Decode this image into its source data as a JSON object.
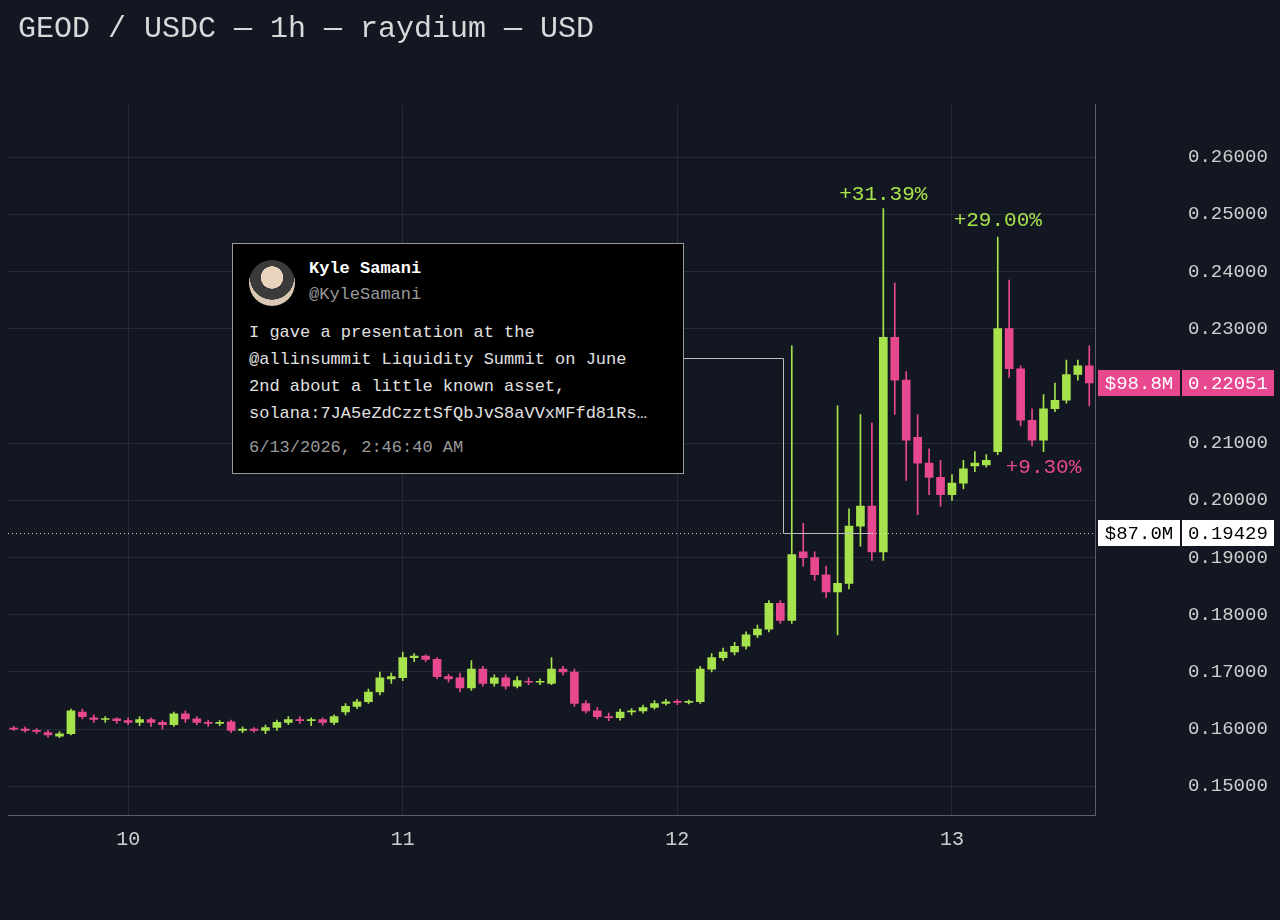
{
  "chart_data": {
    "type": "candlestick",
    "title": "GEOD / USDC — 1h — raydium — USD",
    "categories": [
      null,
      null,
      null,
      null,
      null,
      null,
      null,
      null,
      null,
      null,
      "10",
      null,
      null,
      null,
      null,
      null,
      null,
      null,
      null,
      null,
      null,
      null,
      null,
      null,
      null,
      null,
      null,
      null,
      null,
      null,
      null,
      null,
      null,
      null,
      "11",
      null,
      null,
      null,
      null,
      null,
      null,
      null,
      null,
      null,
      null,
      null,
      null,
      null,
      null,
      null,
      null,
      null,
      null,
      null,
      null,
      null,
      null,
      null,
      "12",
      null,
      null,
      null,
      null,
      null,
      null,
      null,
      null,
      null,
      null,
      null,
      null,
      null,
      null,
      null,
      null,
      null,
      null,
      null,
      null,
      null,
      null,
      null,
      "13",
      null,
      null,
      null,
      null,
      null,
      null,
      null,
      null,
      null,
      null,
      null,
      null
    ],
    "open": [
      0.1602,
      0.16,
      0.1598,
      0.1594,
      0.1588,
      0.1592,
      0.163,
      0.162,
      0.1617,
      0.1618,
      0.1615,
      0.1612,
      0.1617,
      0.1612,
      0.1608,
      0.1627,
      0.1618,
      0.1612,
      0.161,
      0.1613,
      0.1598,
      0.16,
      0.1598,
      0.1603,
      0.1612,
      0.1617,
      0.1615,
      0.1617,
      0.1612,
      0.163,
      0.164,
      0.1648,
      0.1665,
      0.1688,
      0.169,
      0.1725,
      0.1728,
      0.1722,
      0.1692,
      0.169,
      0.1672,
      0.1705,
      0.168,
      0.169,
      0.1675,
      0.1683,
      0.1682,
      0.168,
      0.1705,
      0.17,
      0.1645,
      0.1632,
      0.1622,
      0.162,
      0.163,
      0.1632,
      0.1638,
      0.1645,
      0.1648,
      0.1647,
      0.1648,
      0.1705,
      0.1725,
      0.1735,
      0.1745,
      0.1765,
      0.1775,
      0.182,
      0.179,
      0.191,
      0.19,
      0.187,
      0.184,
      0.1855,
      0.1955,
      0.199,
      0.191,
      0.2285,
      0.221,
      0.211,
      0.2065,
      0.204,
      0.201,
      0.203,
      0.206,
      0.2062,
      0.2085,
      0.23,
      0.223,
      0.214,
      0.2105,
      0.216,
      0.2175,
      0.222,
      0.2235
    ],
    "high": [
      0.1605,
      0.1604,
      0.1601,
      0.1598,
      0.1596,
      0.1635,
      0.1635,
      0.1625,
      0.1622,
      0.162,
      0.162,
      0.1622,
      0.162,
      0.1615,
      0.163,
      0.1632,
      0.1622,
      0.1616,
      0.1615,
      0.1616,
      0.1604,
      0.1603,
      0.1607,
      0.1616,
      0.1622,
      0.1622,
      0.162,
      0.162,
      0.1625,
      0.1645,
      0.1652,
      0.167,
      0.17,
      0.1698,
      0.1735,
      0.1732,
      0.173,
      0.1725,
      0.1696,
      0.1698,
      0.172,
      0.171,
      0.1695,
      0.1695,
      0.1692,
      0.169,
      0.1688,
      0.1725,
      0.171,
      0.1705,
      0.165,
      0.1638,
      0.1628,
      0.1635,
      0.1636,
      0.1642,
      0.165,
      0.1652,
      0.1652,
      0.1651,
      0.171,
      0.1732,
      0.1742,
      0.1752,
      0.177,
      0.1782,
      0.1825,
      0.1825,
      0.227,
      0.196,
      0.191,
      0.1885,
      0.2165,
      0.1985,
      0.215,
      0.2135,
      0.251,
      0.238,
      0.2225,
      0.215,
      0.209,
      0.207,
      0.2045,
      0.207,
      0.2085,
      0.208,
      0.246,
      0.2385,
      0.2235,
      0.216,
      0.2185,
      0.2205,
      0.2245,
      0.2245,
      0.227
    ],
    "low": [
      0.1598,
      0.1595,
      0.1592,
      0.1586,
      0.1585,
      0.159,
      0.1618,
      0.1612,
      0.1612,
      0.161,
      0.1608,
      0.1606,
      0.1605,
      0.16,
      0.1605,
      0.1612,
      0.1608,
      0.1605,
      0.1606,
      0.1594,
      0.1594,
      0.1595,
      0.1592,
      0.1598,
      0.1608,
      0.161,
      0.1606,
      0.1607,
      0.1608,
      0.1625,
      0.1636,
      0.1645,
      0.166,
      0.168,
      0.1685,
      0.1718,
      0.1718,
      0.1688,
      0.1682,
      0.1665,
      0.1668,
      0.1675,
      0.1675,
      0.167,
      0.1672,
      0.1678,
      0.1678,
      0.1678,
      0.1695,
      0.164,
      0.1628,
      0.1618,
      0.1615,
      0.1616,
      0.1625,
      0.1628,
      0.1635,
      0.1642,
      0.1643,
      0.1644,
      0.1645,
      0.17,
      0.172,
      0.173,
      0.174,
      0.176,
      0.177,
      0.1785,
      0.1785,
      0.1885,
      0.186,
      0.183,
      0.1765,
      0.1845,
      0.192,
      0.1895,
      0.1895,
      0.215,
      0.2035,
      0.1975,
      0.201,
      0.199,
      0.2,
      0.202,
      0.205,
      0.2058,
      0.208,
      0.2215,
      0.213,
      0.2095,
      0.2085,
      0.2155,
      0.217,
      0.221,
      0.2165
    ],
    "close": [
      0.16,
      0.1598,
      0.1596,
      0.159,
      0.1592,
      0.1632,
      0.1622,
      0.1617,
      0.1618,
      0.1615,
      0.1612,
      0.1617,
      0.1612,
      0.1608,
      0.1627,
      0.1618,
      0.1612,
      0.161,
      0.1612,
      0.1598,
      0.16,
      0.1598,
      0.1603,
      0.1612,
      0.1617,
      0.1615,
      0.1617,
      0.1612,
      0.1622,
      0.164,
      0.1648,
      0.1665,
      0.169,
      0.1692,
      0.1725,
      0.1728,
      0.1722,
      0.1692,
      0.1688,
      0.1672,
      0.1705,
      0.168,
      0.169,
      0.1675,
      0.1685,
      0.1682,
      0.1683,
      0.1705,
      0.17,
      0.1645,
      0.1632,
      0.1622,
      0.162,
      0.163,
      0.1632,
      0.1638,
      0.1645,
      0.1648,
      0.1647,
      0.1648,
      0.1705,
      0.1725,
      0.1735,
      0.1745,
      0.1765,
      0.1775,
      0.182,
      0.179,
      0.1905,
      0.19,
      0.187,
      0.184,
      0.1855,
      0.1955,
      0.199,
      0.191,
      0.2285,
      0.221,
      0.2105,
      0.2065,
      0.204,
      0.201,
      0.203,
      0.2055,
      0.2065,
      0.207,
      0.23,
      0.223,
      0.214,
      0.2105,
      0.216,
      0.2175,
      0.222,
      0.2235,
      0.2205
    ],
    "colors": [
      "#e8488f",
      "#e8488f",
      "#e8488f",
      "#e8488f",
      "#a6e24c",
      "#a6e24c",
      "#e8488f",
      "#e8488f",
      "#a6e24c",
      "#e8488f",
      "#e8488f",
      "#a6e24c",
      "#e8488f",
      "#e8488f",
      "#a6e24c",
      "#e8488f",
      "#e8488f",
      "#e8488f",
      "#a6e24c",
      "#e8488f",
      "#a6e24c",
      "#e8488f",
      "#a6e24c",
      "#a6e24c",
      "#a6e24c",
      "#e8488f",
      "#a6e24c",
      "#e8488f",
      "#a6e24c",
      "#a6e24c",
      "#a6e24c",
      "#a6e24c",
      "#a6e24c",
      "#a6e24c",
      "#a6e24c",
      "#a6e24c",
      "#e8488f",
      "#e8488f",
      "#e8488f",
      "#e8488f",
      "#a6e24c",
      "#e8488f",
      "#a6e24c",
      "#e8488f",
      "#a6e24c",
      "#e8488f",
      "#a6e24c",
      "#a6e24c",
      "#e8488f",
      "#e8488f",
      "#e8488f",
      "#e8488f",
      "#e8488f",
      "#a6e24c",
      "#a6e24c",
      "#a6e24c",
      "#a6e24c",
      "#a6e24c",
      "#e8488f",
      "#a6e24c",
      "#a6e24c",
      "#a6e24c",
      "#a6e24c",
      "#a6e24c",
      "#a6e24c",
      "#a6e24c",
      "#a6e24c",
      "#e8488f",
      "#a6e24c",
      "#e8488f",
      "#e8488f",
      "#e8488f",
      "#a6e24c",
      "#a6e24c",
      "#a6e24c",
      "#e8488f",
      "#a6e24c",
      "#e8488f",
      "#e8488f",
      "#e8488f",
      "#e8488f",
      "#e8488f",
      "#a6e24c",
      "#a6e24c",
      "#a6e24c",
      "#a6e24c",
      "#a6e24c",
      "#e8488f",
      "#e8488f",
      "#e8488f",
      "#a6e24c",
      "#a6e24c",
      "#a6e24c",
      "#a6e24c",
      "#e8488f"
    ],
    "ylim": [
      0.1449,
      0.2692
    ],
    "yticks": [
      {
        "value": 0.15,
        "label": "0.15000"
      },
      {
        "value": 0.16,
        "label": "0.16000"
      },
      {
        "value": 0.17,
        "label": "0.17000"
      },
      {
        "value": 0.18,
        "label": "0.18000"
      },
      {
        "value": 0.19,
        "label": "0.19000"
      },
      {
        "value": 0.2,
        "label": "0.20000"
      },
      {
        "value": 0.21,
        "label": "0.21000"
      },
      {
        "value": 0.23,
        "label": "0.23000"
      },
      {
        "value": 0.24,
        "label": "0.24000"
      },
      {
        "value": 0.25,
        "label": "0.25000"
      },
      {
        "value": 0.26,
        "label": "0.26000"
      }
    ],
    "grid": true,
    "annotations": [
      {
        "text": "+31.39%",
        "candle": 76,
        "y": 0.2535,
        "color": "#a6e24c"
      },
      {
        "text": "+29.00%",
        "candle": 86,
        "y": 0.2489,
        "color": "#a6e24c"
      },
      {
        "text": "+9.30%",
        "candle": 90,
        "y": 0.2058,
        "color": "#e8488f"
      }
    ],
    "price_lines": [
      {
        "value": 0.22051,
        "label": "$98.8M",
        "color": "#e8488f"
      },
      {
        "value": 0.19429,
        "label": "$87.0M",
        "color": "#ffffff",
        "line_style": "dotted"
      }
    ],
    "callout": {
      "author": "Kyle Samani",
      "handle": "@KyleSamani",
      "text": "I gave a presentation at the @allinsummit Liquidity Summit on June 2nd about a little known asset, solana:7JA5eZdCzztSfQbJvS8aVVxMFfd81Rs…",
      "timestamp": "6/13/2026, 2:46:40 AM",
      "candle": 75,
      "y": 0.19429
    }
  }
}
